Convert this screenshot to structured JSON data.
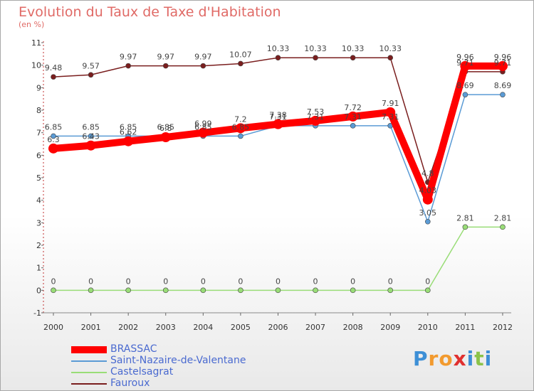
{
  "chart_data": {
    "type": "line",
    "title": "Evolution du Taux de Taxe d'Habitation",
    "subtitle": "(en %)",
    "xlabel": "",
    "ylabel": "",
    "categories": [
      "2000",
      "2001",
      "2002",
      "2003",
      "2004",
      "2005",
      "2006",
      "2007",
      "2008",
      "2009",
      "2010",
      "2011",
      "2012"
    ],
    "ylim": [
      -1,
      11
    ],
    "yticks": [
      "-1",
      "0",
      "1",
      "2",
      "3",
      "4",
      "5",
      "6",
      "7",
      "8",
      "9",
      "10",
      "11"
    ],
    "series": [
      {
        "name": "BRASSAC",
        "color": "#ff0000",
        "emphasis": true,
        "values": [
          6.3,
          6.43,
          6.62,
          6.8,
          7.0,
          7.2,
          7.38,
          7.53,
          7.72,
          7.91,
          4.03,
          9.96,
          9.96
        ],
        "labels": [
          "6.3",
          "6.43",
          "6.62",
          "6.8",
          "6.99",
          "7.2",
          "7.38",
          "7.53",
          "7.72",
          "7.91",
          "4.03",
          "9.96",
          "9.96"
        ]
      },
      {
        "name": "Saint-Nazaire-de-Valentane",
        "color": "#5b9bd5",
        "emphasis": false,
        "values": [
          6.85,
          6.85,
          6.85,
          6.85,
          6.85,
          6.85,
          7.31,
          7.31,
          7.31,
          7.31,
          3.05,
          8.69,
          8.69
        ],
        "labels": [
          "6.85",
          "6.85",
          "6.85",
          "6.85",
          "6.85",
          "6.85",
          "7.31",
          "7.31",
          "7.31",
          "7.31",
          "3.05",
          "8.69",
          "8.69"
        ]
      },
      {
        "name": "Castelsagrat",
        "color": "#99dd77",
        "emphasis": false,
        "values": [
          0,
          0,
          0,
          0,
          0,
          0,
          0,
          0,
          0,
          0,
          0,
          2.81,
          2.81
        ],
        "labels": [
          "0",
          "0",
          "0",
          "0",
          "0",
          "0",
          "0",
          "0",
          "0",
          "0",
          "0",
          "2.81",
          "2.81"
        ]
      },
      {
        "name": "Fauroux",
        "color": "#7a1e1e",
        "emphasis": false,
        "values": [
          9.48,
          9.57,
          9.97,
          9.97,
          9.97,
          10.07,
          10.33,
          10.33,
          10.33,
          10.33,
          4.8,
          9.71,
          9.71
        ],
        "labels": [
          "9.48",
          "9.57",
          "9.97",
          "9.97",
          "9.97",
          "10.07",
          "10.33",
          "10.33",
          "10.33",
          "10.33",
          "4.8",
          "9.71",
          "9.71"
        ]
      }
    ],
    "legend_position": "bottom-left",
    "grid": false
  },
  "logo": {
    "text": "Proxiti",
    "letters": [
      "P",
      "r",
      "o",
      "x",
      "i",
      "t",
      "i"
    ],
    "colors": [
      "#3d8fd6",
      "#f29a2e",
      "#f29a2e",
      "#e0302f",
      "#3d8fd6",
      "#8bc34a",
      "#3d8fd6"
    ]
  }
}
